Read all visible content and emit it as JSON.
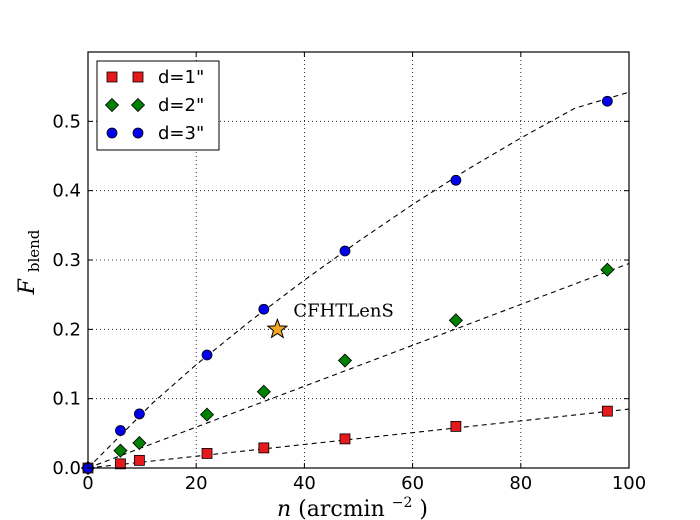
{
  "chart_data": {
    "type": "scatter",
    "title": "",
    "xlabel": "n (arcmin",
    "xlabel_sup": "−2",
    "xlabel_close": ")",
    "ylabel": "F",
    "ylabel_sub": "blend",
    "xlim": [
      0,
      100
    ],
    "ylim": [
      0,
      0.6
    ],
    "x_ticks": [
      0,
      20,
      40,
      60,
      80,
      100
    ],
    "y_ticks": [
      0.0,
      0.1,
      0.2,
      0.3,
      0.4,
      0.5
    ],
    "x_tick_labels": [
      "0",
      "20",
      "40",
      "60",
      "80",
      "100"
    ],
    "y_tick_labels": [
      "0.0",
      "0.1",
      "0.2",
      "0.3",
      "0.4",
      "0.5"
    ],
    "grid": true,
    "legend_position": "top-left",
    "series": [
      {
        "name": "d=1\"",
        "marker": "square",
        "color": "#e41a1c",
        "x": [
          0,
          6,
          9.5,
          22,
          32.5,
          47.5,
          68,
          96
        ],
        "y": [
          0.0,
          0.006,
          0.011,
          0.021,
          0.029,
          0.042,
          0.06,
          0.082
        ],
        "fit_line": [
          [
            0,
            0.0
          ],
          [
            100,
            0.085
          ]
        ]
      },
      {
        "name": "d=2\"",
        "marker": "diamond",
        "color": "#008000",
        "x": [
          0,
          6,
          9.5,
          22,
          32.5,
          47.5,
          68,
          96
        ],
        "y": [
          0.0,
          0.025,
          0.036,
          0.077,
          0.11,
          0.155,
          0.213,
          0.286
        ],
        "fit_line": [
          [
            0,
            0.0
          ],
          [
            100,
            0.295
          ]
        ]
      },
      {
        "name": "d=3\"",
        "marker": "circle",
        "color": "#0000ee",
        "x": [
          0,
          6,
          9.5,
          22,
          32.5,
          47.5,
          68,
          96
        ],
        "y": [
          0.0,
          0.054,
          0.078,
          0.163,
          0.229,
          0.313,
          0.415,
          0.529
        ],
        "fit_line": [
          [
            0,
            0.0
          ],
          [
            6,
            0.047
          ],
          [
            12,
            0.094
          ],
          [
            20,
            0.149
          ],
          [
            30,
            0.212
          ],
          [
            40,
            0.271
          ],
          [
            50,
            0.327
          ],
          [
            60,
            0.38
          ],
          [
            70,
            0.43
          ],
          [
            80,
            0.476
          ],
          [
            90,
            0.519
          ],
          [
            100,
            0.542
          ]
        ]
      }
    ],
    "annotation": {
      "label": "CFHTLenS",
      "x": 35,
      "y": 0.2,
      "marker": "star",
      "color": "#f5a623"
    }
  }
}
